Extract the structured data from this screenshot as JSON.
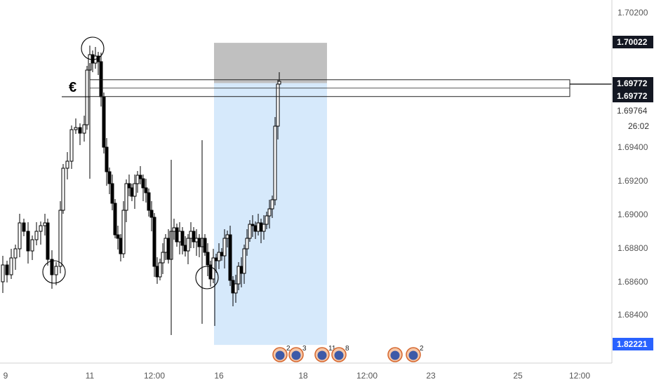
{
  "chart_data": {
    "type": "candlestick",
    "instrument_symbol": "€",
    "y_axis": {
      "ticks": [
        "1.70200",
        "1.69400",
        "1.69200",
        "1.69000",
        "1.68800",
        "1.68600",
        "1.68400"
      ],
      "ylim": [
        1.683,
        1.703
      ]
    },
    "x_axis": {
      "ticks": [
        "9",
        "11",
        "12:00",
        "16",
        "18",
        "12:00",
        "23",
        "25",
        "12:00"
      ]
    },
    "price_badges": [
      {
        "label": "1.70022",
        "kind": "dark"
      },
      {
        "label": "1.69772",
        "kind": "dark"
      },
      {
        "label": "1.69772",
        "kind": "dark"
      },
      {
        "label": "1.82221",
        "kind": "blue"
      }
    ],
    "price_labels": [
      "1.69764",
      "26:02"
    ],
    "position_tool": {
      "stop_top": 1.7002,
      "entry": 1.6978,
      "target_bottom": 1.6822
    },
    "resistance_zone": {
      "top": 1.698,
      "bottom": 1.697
    },
    "event_markers": [
      {
        "count": "2"
      },
      {
        "count": "3"
      },
      {
        "count": "11"
      },
      {
        "count": "8"
      },
      {
        "count": "2"
      }
    ],
    "colors": {
      "stop_zone": "#bdbdbd",
      "target_zone": "#d6e9fb",
      "badge_dark": "#131722",
      "badge_blue": "#2962ff",
      "axis_text": "#555555"
    }
  }
}
